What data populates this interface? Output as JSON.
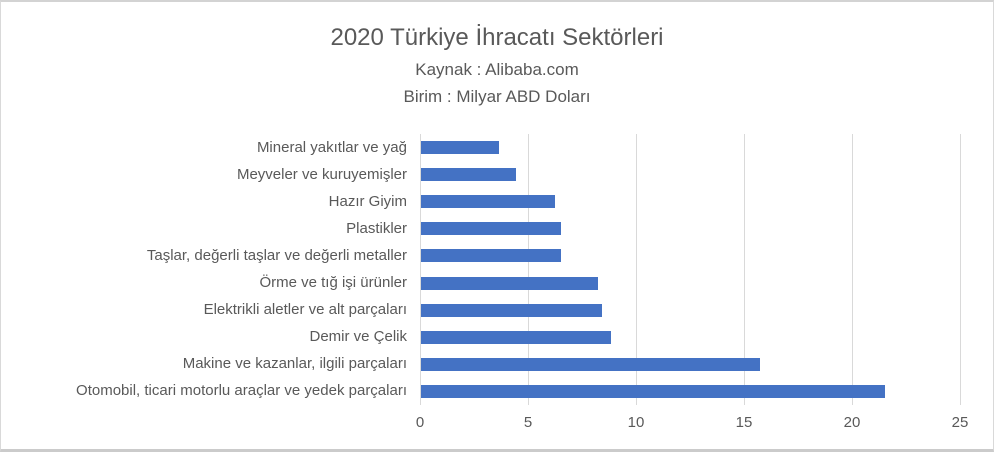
{
  "header": {
    "title": "2020 Türkiye İhracatı Sektörleri",
    "subtitle_source": "Kaynak : Alibaba.com",
    "subtitle_unit": "Birim : Milyar ABD Doları"
  },
  "chart_data": {
    "type": "bar",
    "orientation": "horizontal",
    "title": "2020 Türkiye İhracatı Sektörleri",
    "subtitle": [
      "Kaynak : Alibaba.com",
      "Birim : Milyar ABD Doları"
    ],
    "unit": "Milyar ABD Doları",
    "categories": [
      "Mineral yakıtlar ve yağ",
      "Meyveler ve kuruyemişler",
      "Hazır Giyim",
      "Plastikler",
      "Taşlar, değerli taşlar ve değerli metaller",
      "Örme ve tığ işi ürünler",
      "Elektrikli aletler ve alt parçaları",
      "Demir ve Çelik",
      "Makine ve kazanlar, ilgili parçaları",
      "Otomobil, ticari motorlu araçlar  ve yedek parçaları"
    ],
    "values": [
      3.6,
      4.4,
      6.2,
      6.5,
      6.5,
      8.2,
      8.4,
      8.8,
      15.7,
      21.5
    ],
    "category_order": "top-to-bottom",
    "xlabel": "",
    "ylabel": "",
    "xlim": [
      0,
      25
    ],
    "xticks": [
      0,
      5,
      10,
      15,
      20,
      25
    ],
    "grid": true,
    "legend": false,
    "data_labels": false,
    "colors": {
      "bar": "#4472C4",
      "gridline": "#d9d9d9",
      "axis_line": "#d9d9d9",
      "text": "#595959"
    }
  }
}
